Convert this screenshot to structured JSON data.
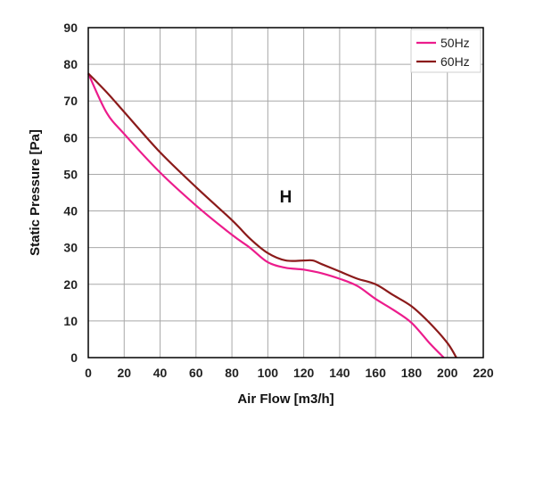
{
  "chart_data": {
    "type": "line",
    "xlabel": "Air Flow [m3/h]",
    "ylabel": "Static Pressure [Pa]",
    "xlim": [
      0,
      220
    ],
    "ylim": [
      0,
      90
    ],
    "xticks": [
      0,
      20,
      40,
      60,
      80,
      100,
      120,
      140,
      160,
      180,
      200,
      220
    ],
    "yticks": [
      0,
      10,
      20,
      30,
      40,
      50,
      60,
      70,
      80,
      90
    ],
    "grid": true,
    "legend": "top-right",
    "annotation": "H",
    "series": [
      {
        "name": "50Hz",
        "color": "#ec1c8c",
        "x": [
          0,
          10,
          20,
          40,
          60,
          80,
          90,
          100,
          110,
          120,
          130,
          140,
          150,
          160,
          170,
          180,
          190,
          198
        ],
        "y": [
          77.5,
          67,
          61,
          50.5,
          41.5,
          33.5,
          30,
          26,
          24.5,
          24,
          23,
          21.5,
          19.5,
          16,
          13,
          9.5,
          4,
          0
        ]
      },
      {
        "name": "60Hz",
        "color": "#8b1a1a",
        "x": [
          0,
          10,
          20,
          40,
          60,
          80,
          90,
          100,
          110,
          120,
          125,
          130,
          140,
          150,
          160,
          170,
          180,
          190,
          200,
          205
        ],
        "y": [
          77.5,
          72.5,
          67,
          56,
          46.5,
          37.5,
          32.5,
          28.5,
          26.5,
          26.5,
          26.5,
          25.5,
          23.5,
          21.5,
          20,
          17,
          14,
          9.5,
          4,
          0
        ]
      }
    ]
  }
}
